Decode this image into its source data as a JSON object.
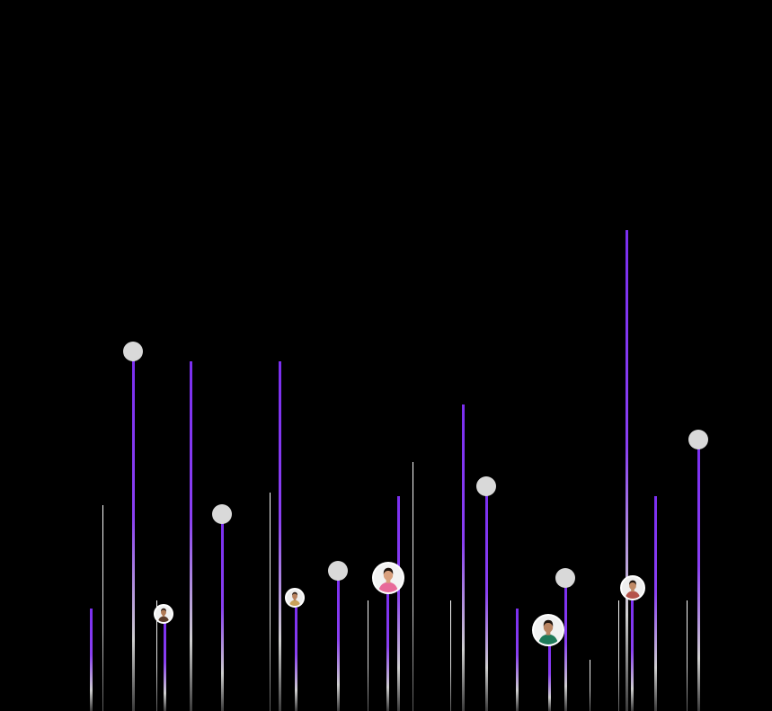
{
  "scene": {
    "background": "#000000",
    "accent_color": "#7b2ff0",
    "line_color": "#ffffff",
    "dot_color": "#d9d9d9",
    "avatars": [
      {
        "name": "avatar-person-1",
        "shirt": "#5a3b2a",
        "skin": "#b07a55",
        "hair": "#2b1a12",
        "bg": "#f1f1f1"
      },
      {
        "name": "avatar-person-2",
        "shirt": "#c9a25a",
        "skin": "#b9825e",
        "hair": "#2b1a12",
        "bg": "#eeeeee"
      },
      {
        "name": "avatar-person-3",
        "shirt": "#e86a9a",
        "skin": "#d9a07e",
        "hair": "#1e120c",
        "bg": "#f3f3f3"
      },
      {
        "name": "avatar-person-4",
        "shirt": "#1f7a5a",
        "skin": "#b98462",
        "hair": "#1e120c",
        "bg": "#f1f1f1"
      },
      {
        "name": "avatar-person-5",
        "shirt": "#b4534a",
        "skin": "#c08a66",
        "hair": "#22160f",
        "bg": "#eeeeee"
      }
    ]
  }
}
